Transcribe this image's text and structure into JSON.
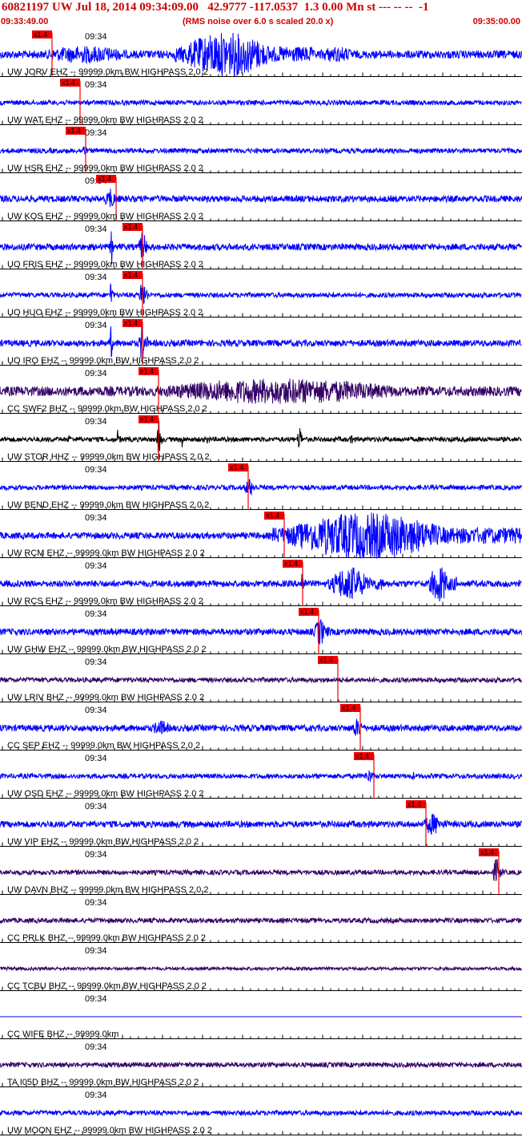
{
  "header": {
    "title": "60821197 UW Jul 18, 2014 09:34:09.00   42.9777 -117.0537  1.3 0.00 Mn st --- -- --  -1",
    "start_time": "09:33:49.00",
    "scale_note": "(RMS noise over 6.0 s scaled 20.0 x)",
    "end_time": "09:35:00.00"
  },
  "colors": {
    "blue": "#0000ff",
    "purple": "#330066",
    "black": "#000000",
    "pick": "#ee0000",
    "text": "#000000",
    "header": "#cc0000"
  },
  "chart_data": {
    "type": "line",
    "title": "60821197 UW Jul 18, 2014 09:34:09.00   42.9777 -117.0537  1.3 0.00 Mn st --- -- --  -1",
    "x_range": [
      "09:33:49.00",
      "09:35:00.00"
    ],
    "minute_label": "09:34",
    "pick_label": "x1.4",
    "series": [
      {
        "label": "UW JORV EHZ -- 99999.0km BW  HIGHPASS  2.0  2",
        "color": "blue",
        "noise": 5,
        "pick": 65,
        "events": [
          {
            "s": 40,
            "e": 218,
            "a": 11
          },
          {
            "s": 218,
            "e": 390,
            "a": 28
          },
          {
            "s": 390,
            "e": 470,
            "a": 10
          }
        ]
      },
      {
        "label": "UW WAT EHZ -- 99999.0km BW  HIGHPASS  2.0  2",
        "color": "blue",
        "noise": 3,
        "pick": 100,
        "events": []
      },
      {
        "label": "UW HSR EHZ -- 99999.0km BW  HIGHPASS  2.0  2",
        "color": "blue",
        "noise": 3,
        "pick": 107,
        "events": [
          {
            "s": 100,
            "e": 112,
            "a": 8
          }
        ]
      },
      {
        "label": "UW KOS EHZ -- 99999.0km BW  HIGHPASS  2.0  2",
        "color": "blue",
        "noise": 4,
        "pick": 145,
        "events": [
          {
            "s": 130,
            "e": 150,
            "a": 13
          }
        ]
      },
      {
        "label": "UO FRIS EHZ -- 99999.0km BW  HIGHPASS  2.0  2",
        "color": "blue",
        "noise": 4,
        "pick": 178,
        "events": [
          {
            "s": 137,
            "e": 141,
            "a": 24
          },
          {
            "s": 174,
            "e": 184,
            "a": 24
          }
        ]
      },
      {
        "label": "UO HUO EHZ -- 99999.0km BW  HIGHPASS  2.0  2",
        "color": "blue",
        "noise": 3,
        "pick": 178,
        "events": [
          {
            "s": 137,
            "e": 141,
            "a": 22
          },
          {
            "s": 174,
            "e": 184,
            "a": 22
          }
        ]
      },
      {
        "label": "UO IRO EHZ -- 99999.0km BW  HIGHPASS  2.0  2",
        "color": "blue",
        "noise": 4,
        "pick": 178,
        "events": [
          {
            "s": 137,
            "e": 141,
            "a": 24
          },
          {
            "s": 174,
            "e": 184,
            "a": 24
          }
        ]
      },
      {
        "label": "CC SWF2 BHZ -- 99999.0km BW  HIGHPASS  2.0  2",
        "color": "purple",
        "noise": 6,
        "pick": 198,
        "events": [
          {
            "s": 170,
            "e": 650,
            "a": 16
          }
        ]
      },
      {
        "label": "UW STOR HHZ -- 99999.0km BW  HIGHPASS  2.0  2",
        "color": "black",
        "noise": 3,
        "pick": 198,
        "events": [
          {
            "s": 85,
            "e": 88,
            "a": 10
          },
          {
            "s": 145,
            "e": 150,
            "a": 12
          },
          {
            "s": 196,
            "e": 202,
            "a": 24
          },
          {
            "s": 226,
            "e": 229,
            "a": 12
          },
          {
            "s": 258,
            "e": 261,
            "a": 12
          },
          {
            "s": 372,
            "e": 377,
            "a": 24
          },
          {
            "s": 438,
            "e": 441,
            "a": 14
          }
        ]
      },
      {
        "label": "UW BEND EHZ -- 99999.0km BW  HIGHPASS  2.0  2",
        "color": "blue",
        "noise": 3,
        "pick": 310,
        "events": [
          {
            "s": 305,
            "e": 322,
            "a": 12
          }
        ]
      },
      {
        "label": "UW RCM EHZ -- 99999.0km BW  HIGHPASS  2.0  2",
        "color": "blue",
        "noise": 4,
        "pick": 355,
        "events": [
          {
            "s": 340,
            "e": 650,
            "a": 29
          }
        ]
      },
      {
        "label": "UW RCS EHZ -- 99999.0km BW  HIGHPASS  2.0  2",
        "color": "blue",
        "noise": 4,
        "pick": 378,
        "events": [
          {
            "s": 375,
            "e": 382,
            "a": 18
          },
          {
            "s": 410,
            "e": 480,
            "a": 22
          },
          {
            "s": 535,
            "e": 570,
            "a": 25
          }
        ]
      },
      {
        "label": "UW GHW EHZ -- 99999.0km BW  HIGHPASS  2.0  2",
        "color": "blue",
        "noise": 4,
        "pick": 398,
        "events": [
          {
            "s": 392,
            "e": 412,
            "a": 18
          }
        ]
      },
      {
        "label": "UW LRIV BHZ -- 99999.0km BW  HIGHPASS  2.0  2",
        "color": "purple",
        "noise": 3,
        "pick": 422,
        "events": []
      },
      {
        "label": "CC SEP EHZ -- 99999.0km BW  HIGHPASS  2.0  2",
        "color": "blue",
        "noise": 4,
        "pick": 450,
        "events": [
          {
            "s": 188,
            "e": 222,
            "a": 10
          },
          {
            "s": 438,
            "e": 460,
            "a": 12
          }
        ]
      },
      {
        "label": "UW OSD EHZ -- 99999.0km BW  HIGHPASS  2.0  2",
        "color": "blue",
        "noise": 3,
        "pick": 467,
        "events": [
          {
            "s": 455,
            "e": 470,
            "a": 9
          },
          {
            "s": 515,
            "e": 518,
            "a": 7
          }
        ]
      },
      {
        "label": "UW VIP EHZ -- 99999.0km BW  HIGHPASS  2.0  2",
        "color": "blue",
        "noise": 4,
        "pick": 532,
        "events": [
          {
            "s": 528,
            "e": 560,
            "a": 14
          }
        ]
      },
      {
        "label": "UW DAVN BHZ -- 99999.0km BW  HIGHPASS  2.0  2",
        "color": "purple",
        "noise": 3,
        "pick": 623,
        "events": [
          {
            "s": 615,
            "e": 628,
            "a": 18
          }
        ]
      },
      {
        "label": "CC PRLK BHZ -- 99999.0km BW  HIGHPASS  2.0  2",
        "color": "purple",
        "noise": 3,
        "pick": null,
        "events": []
      },
      {
        "label": "CC TCBU BHZ -- 99999.0km BW  HIGHPASS  2.0  2",
        "color": "purple",
        "noise": 2,
        "pick": null,
        "events": []
      },
      {
        "label": "CC WIFE BHZ -- 99999.0km",
        "color": "blue",
        "noise": 0,
        "pick": null,
        "events": []
      },
      {
        "label": "TA I05D BHZ -- 99999.0km BW  HIGHPASS  2.0  2",
        "color": "purple",
        "noise": 3,
        "pick": null,
        "events": []
      },
      {
        "label": "UW MOON EHZ -- 99999.0km BW  HIGHPASS  2.0  2",
        "color": "blue",
        "noise": 3,
        "pick": null,
        "events": []
      }
    ]
  }
}
